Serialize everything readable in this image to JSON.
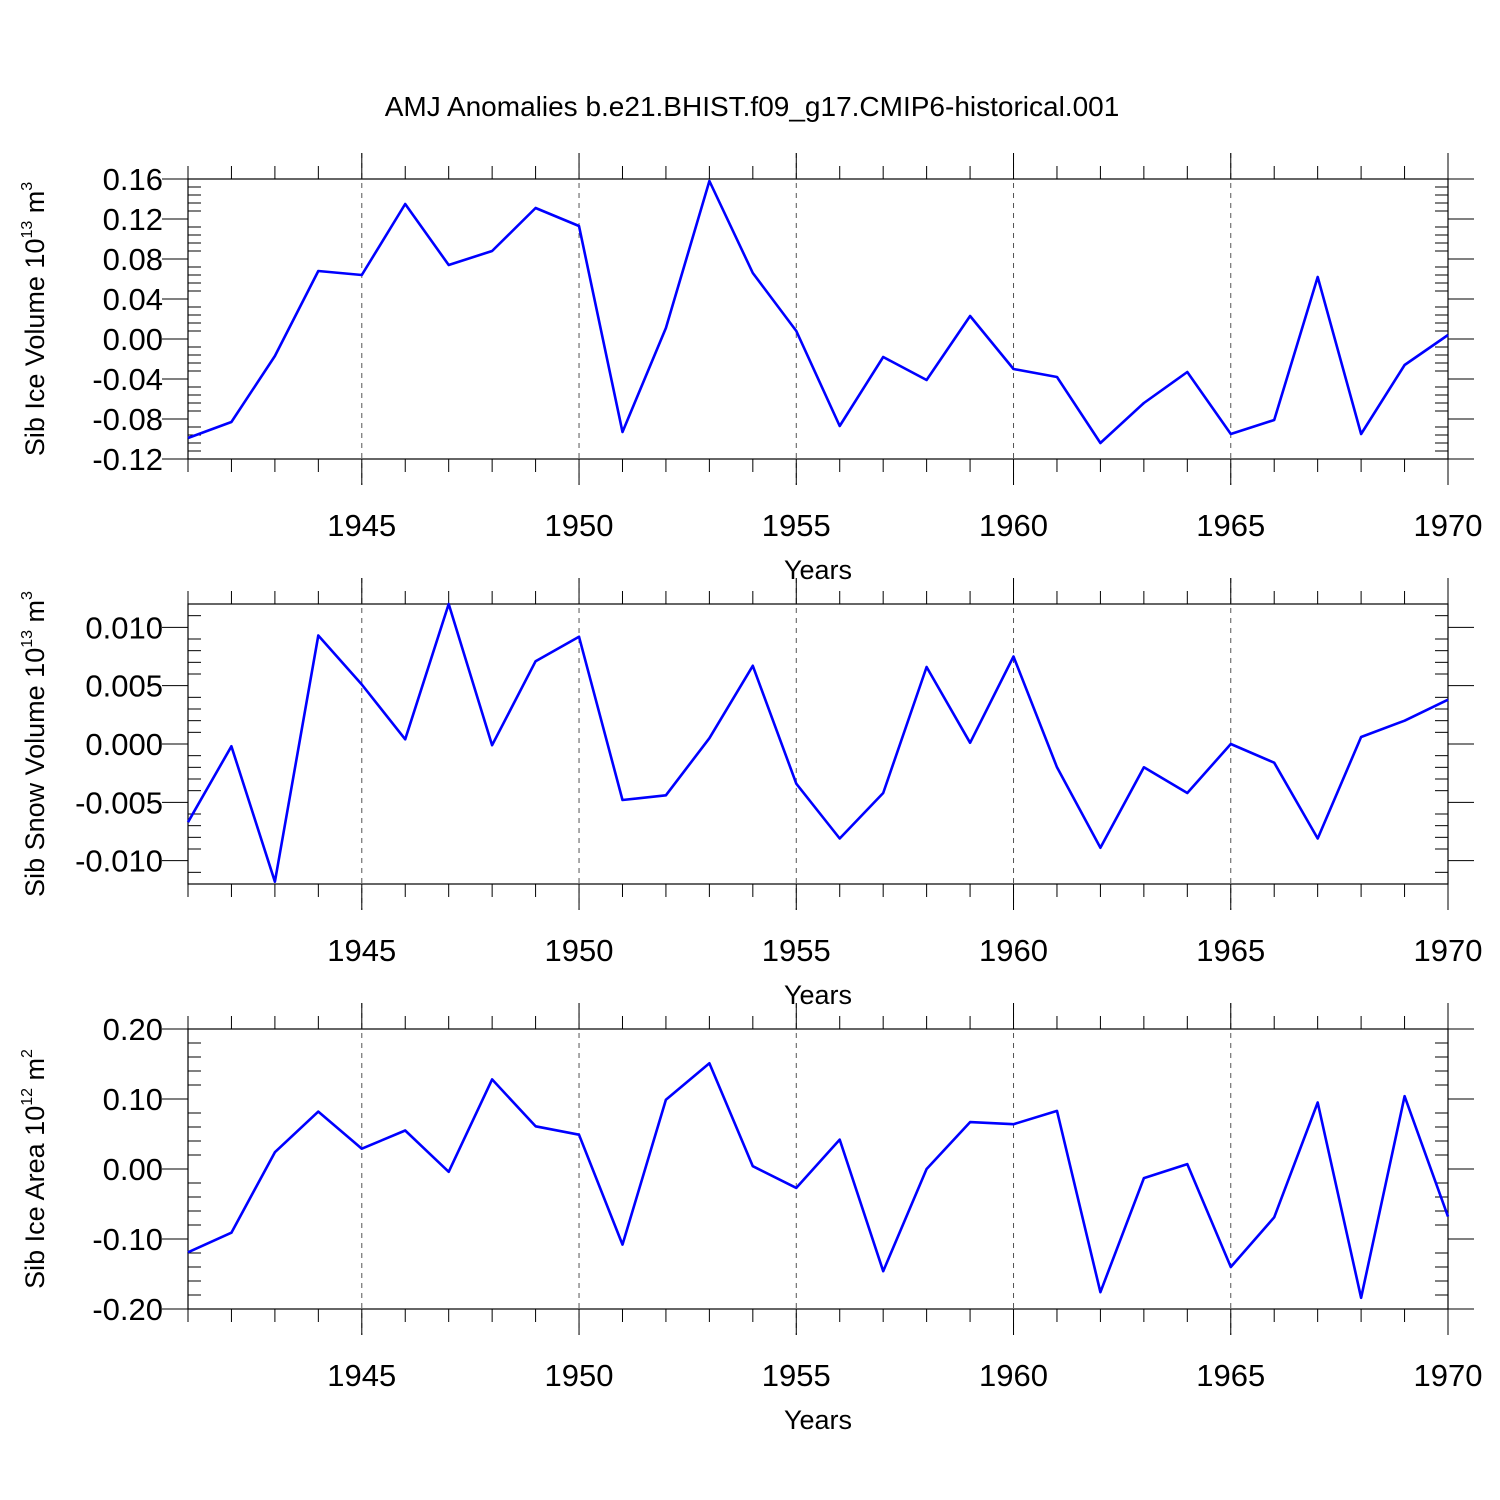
{
  "title": "AMJ Anomalies b.e21.BHIST.f09_g17.CMIP6-historical.001",
  "line_color": "#0000ff",
  "chart_data": [
    {
      "type": "line",
      "ylabel": {
        "text": "Sib Ice Volume 10",
        "sup": "13",
        "unit": " m",
        "unit_sup": "3"
      },
      "xlabel": "Years",
      "xlim": [
        1941,
        1970
      ],
      "ylim": [
        -0.12,
        0.16
      ],
      "yticks": [
        -0.12,
        -0.08,
        -0.04,
        0.0,
        0.04,
        0.08,
        0.12,
        0.16
      ],
      "ytick_labels": [
        "-0.12",
        "-0.08",
        "-0.04",
        "0.00",
        "0.04",
        "0.08",
        "0.12",
        "0.16"
      ],
      "xticks": [
        1945,
        1950,
        1955,
        1960,
        1965,
        1970
      ],
      "xtick_labels": [
        "1945",
        "1950",
        "1955",
        "1960",
        "1965",
        "1970"
      ],
      "grid_x": true,
      "x": [
        1941,
        1942,
        1943,
        1944,
        1945,
        1946,
        1947,
        1948,
        1949,
        1950,
        1951,
        1952,
        1953,
        1954,
        1955,
        1956,
        1957,
        1958,
        1959,
        1960,
        1961,
        1962,
        1963,
        1964,
        1965,
        1966,
        1967,
        1968,
        1969,
        1970
      ],
      "y": [
        -0.099,
        -0.083,
        -0.017,
        0.068,
        0.064,
        0.135,
        0.074,
        0.088,
        0.131,
        0.113,
        -0.093,
        0.011,
        0.158,
        0.066,
        0.008,
        -0.087,
        -0.018,
        -0.041,
        0.023,
        -0.03,
        -0.038,
        -0.104,
        -0.064,
        -0.033,
        -0.095,
        -0.081,
        0.062,
        -0.095,
        -0.026,
        0.004
      ]
    },
    {
      "type": "line",
      "ylabel": {
        "text": "Sib Snow Volume 10",
        "sup": "13",
        "unit": " m",
        "unit_sup": "3"
      },
      "xlabel": "Years",
      "xlim": [
        1941,
        1970
      ],
      "ylim": [
        -0.012,
        0.012
      ],
      "yticks": [
        -0.01,
        -0.005,
        0.0,
        0.005,
        0.01
      ],
      "ytick_labels": [
        "-0.010",
        "-0.005",
        "0.000",
        "0.005",
        "0.010"
      ],
      "xticks": [
        1945,
        1950,
        1955,
        1960,
        1965,
        1970
      ],
      "xtick_labels": [
        "1945",
        "1950",
        "1955",
        "1960",
        "1965",
        "1970"
      ],
      "grid_x": true,
      "x": [
        1941,
        1942,
        1943,
        1944,
        1945,
        1946,
        1947,
        1948,
        1949,
        1950,
        1951,
        1952,
        1953,
        1954,
        1955,
        1956,
        1957,
        1958,
        1959,
        1960,
        1961,
        1962,
        1963,
        1964,
        1965,
        1966,
        1967,
        1968,
        1969,
        1970
      ],
      "y": [
        -0.0067,
        -0.0002,
        -0.0118,
        0.0093,
        0.0051,
        0.0004,
        0.012,
        -0.0001,
        0.0071,
        0.0092,
        -0.0048,
        -0.0044,
        0.0005,
        0.0067,
        -0.0034,
        -0.0081,
        -0.0042,
        0.0066,
        0.0001,
        0.0075,
        -0.002,
        -0.0089,
        -0.002,
        -0.0042,
        0.0,
        -0.0016,
        -0.0081,
        0.0006,
        0.002,
        0.0038
      ]
    },
    {
      "type": "line",
      "ylabel": {
        "text": "Sib Ice Area 10",
        "sup": "12",
        "unit": " m",
        "unit_sup": "2"
      },
      "xlabel": "Years",
      "xlim": [
        1941,
        1970
      ],
      "ylim": [
        -0.2,
        0.2
      ],
      "yticks": [
        -0.2,
        -0.1,
        0.0,
        0.1,
        0.2
      ],
      "ytick_labels": [
        "-0.20",
        "-0.10",
        "0.00",
        "0.10",
        "0.20"
      ],
      "xticks": [
        1945,
        1950,
        1955,
        1960,
        1965,
        1970
      ],
      "xtick_labels": [
        "1945",
        "1950",
        "1955",
        "1960",
        "1965",
        "1970"
      ],
      "grid_x": true,
      "x": [
        1941,
        1942,
        1943,
        1944,
        1945,
        1946,
        1947,
        1948,
        1949,
        1950,
        1951,
        1952,
        1953,
        1954,
        1955,
        1956,
        1957,
        1958,
        1959,
        1960,
        1961,
        1962,
        1963,
        1964,
        1965,
        1966,
        1967,
        1968,
        1969,
        1970
      ],
      "y": [
        -0.119,
        -0.091,
        0.024,
        0.082,
        0.029,
        0.055,
        -0.004,
        0.128,
        0.061,
        0.049,
        -0.108,
        0.099,
        0.151,
        0.004,
        -0.027,
        0.042,
        -0.146,
        0.0,
        0.067,
        0.064,
        0.083,
        -0.176,
        -0.013,
        0.007,
        -0.14,
        -0.069,
        0.095,
        -0.184,
        0.104,
        -0.068
      ]
    }
  ]
}
